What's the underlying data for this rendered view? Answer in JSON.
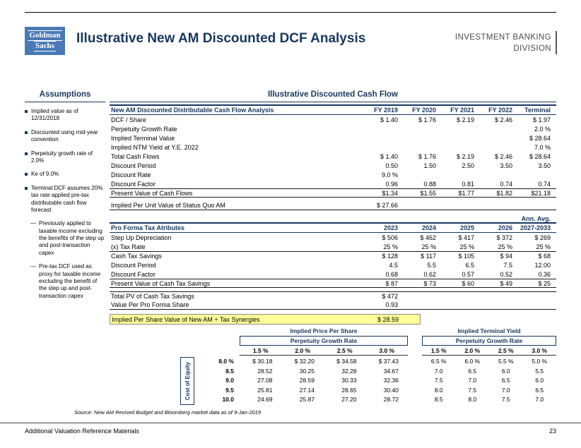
{
  "colors": {
    "accent_navy": "#17375e",
    "logo_blue": "#4a7ab5",
    "highlight_yellow": "#ffff99"
  },
  "header": {
    "logo_line1": "Goldman",
    "logo_line2": "Sachs",
    "title": "Illustrative New AM Discounted DCF Analysis",
    "division_line1": "INVESTMENT BANKING",
    "division_line2": "DIVISION"
  },
  "assumptions": {
    "title": "Assumptions",
    "bullets": [
      "Implied value as of 12/31/2018",
      "Discounted using mid-year convention",
      "Perpetuity growth rate of 2.0%",
      "Ke of 9.0%",
      "Terminal DCF assumes 20% tax rate applied pre-tax distributable cash flow forecast"
    ],
    "sub_bullets": [
      "Previously applied to taxable income excluding the benefits of the step up and post-transaction capex",
      "Pre-tax DCF used as proxy for taxable income excluding the benefit of the step up and post-transaction capex"
    ]
  },
  "main": {
    "title": "Illustrative Discounted Cash Flow",
    "dcf_table": {
      "header": "New AM Discounted Distributable Cash Flow Analysis",
      "columns": [
        "FY 2019",
        "FY 2020",
        "FY 2021",
        "FY 2022",
        "Terminal"
      ],
      "rows": [
        {
          "label": "DCF / Share",
          "values": [
            "$ 1.40",
            "$ 1.76",
            "$ 2.19",
            "$ 2.46",
            "$ 1.97"
          ]
        },
        {
          "label": "Perpetuity Growth Rate",
          "values": [
            "",
            "",
            "",
            "",
            "2.0 %"
          ]
        },
        {
          "label": "Implied Terminal Value",
          "values": [
            "",
            "",
            "",
            "",
            "$ 28.64"
          ]
        },
        {
          "label": "Implied NTM Yield at Y.E. 2022",
          "values": [
            "",
            "",
            "",
            "",
            "7.0 %"
          ]
        },
        {
          "label": "Total Cash Flows",
          "values": [
            "$ 1.40",
            "$ 1.76",
            "$ 2.19",
            "$ 2.46",
            "$ 28.64"
          ]
        },
        {
          "label": "Discount Period",
          "values": [
            "0.50",
            "1.50",
            "2.50",
            "3.50",
            "3.50"
          ]
        },
        {
          "label": "Discount Rate",
          "values": [
            "9.0 %",
            "",
            "",
            "",
            ""
          ]
        },
        {
          "label": "Discount Factor",
          "values": [
            "0.96",
            "0.88",
            "0.81",
            "0.74",
            "0.74"
          ]
        },
        {
          "label": "Present Value of Cash Flows",
          "values": [
            "$1.34",
            "$1.55",
            "$1.77",
            "$1.82",
            "$21.18"
          ]
        },
        {
          "label": "Implied Per Unit Value of Status Quo AM",
          "values": [
            "$ 27.66",
            "",
            "",
            "",
            ""
          ]
        }
      ]
    },
    "tax_table": {
      "ann_avg_note": "Ann. Avg.",
      "header": "Pro Forma Tax Atributes",
      "columns": [
        "2023",
        "2024",
        "2025",
        "2026",
        "2027-2033"
      ],
      "rows": [
        {
          "label": "Step Up Depreciation",
          "values": [
            "$ 506",
            "$ 462",
            "$ 417",
            "$ 372",
            "$ 269"
          ]
        },
        {
          "label": "(x) Tax Rate",
          "values": [
            "25 %",
            "25 %",
            "25 %",
            "25 %",
            "25 %"
          ]
        },
        {
          "label": "Cash Tax Savings",
          "values": [
            "$ 128",
            "$ 117",
            "$ 105",
            "$ 94",
            "$ 68"
          ]
        },
        {
          "label": "Discount Period",
          "values": [
            "4.5",
            "5.5",
            "6.5",
            "7.5",
            "12.00"
          ]
        },
        {
          "label": "Discount Factor",
          "values": [
            "0.68",
            "0.62",
            "0.57",
            "0.52",
            "0.36"
          ]
        },
        {
          "label": "Present Value of Cash Tax Savings",
          "values": [
            "$ 87",
            "$ 73",
            "$ 60",
            "$ 49",
            "$ 25"
          ]
        }
      ]
    },
    "totals_table": {
      "rows": [
        {
          "label": "Total PV of Cash Tax Savings",
          "values": [
            "$ 472",
            "",
            "",
            "",
            ""
          ]
        },
        {
          "label": "Value Per Pro Forma Share",
          "values": [
            "0.93",
            "",
            "",
            "",
            ""
          ]
        }
      ]
    },
    "highlight": {
      "label": "Implied Per Share Value of New AM + Tax Synergies",
      "value": "$ 28.59"
    }
  },
  "sensitivity": {
    "left": {
      "title": "Implied Price Per Share",
      "group_header": "Perpetuity Growth Rate",
      "cols": [
        "1.5 %",
        "2.0 %",
        "2.5 %",
        "3.0 %"
      ],
      "axis_label": "Cost of Equity",
      "row_labels": [
        "8.0 %",
        "8.5",
        "9.0",
        "9.5",
        "10.0"
      ],
      "rows": [
        [
          "$ 30.18",
          "$ 32.20",
          "$ 34.58",
          "$ 37.43"
        ],
        [
          "28.52",
          "30.25",
          "32.28",
          "34.67"
        ],
        [
          "27.08",
          "28.59",
          "30.33",
          "32.36"
        ],
        [
          "25.81",
          "27.14",
          "28.65",
          "30.40"
        ],
        [
          "24.69",
          "25.87",
          "27.20",
          "28.72"
        ]
      ]
    },
    "right": {
      "title": "Implied Terminal Yield",
      "group_header": "Perpetuity Growth Rate",
      "cols": [
        "1.5 %",
        "2.0 %",
        "2.5 %",
        "3.0 %"
      ],
      "rows": [
        [
          "6.5 %",
          "6.0 %",
          "5.5 %",
          "5.0 %"
        ],
        [
          "7.0",
          "6.5",
          "6.0",
          "5.5"
        ],
        [
          "7.5",
          "7.0",
          "6.5",
          "6.0"
        ],
        [
          "8.0",
          "7.5",
          "7.0",
          "6.5"
        ],
        [
          "8.5",
          "8.0",
          "7.5",
          "7.0"
        ]
      ]
    }
  },
  "source_note": "Source: New AM Revised Budget and Bloomberg market data as of 9-Jan-2019",
  "footer": {
    "left_text": "Additional Valuation Reference Materials",
    "page_number": "23"
  }
}
